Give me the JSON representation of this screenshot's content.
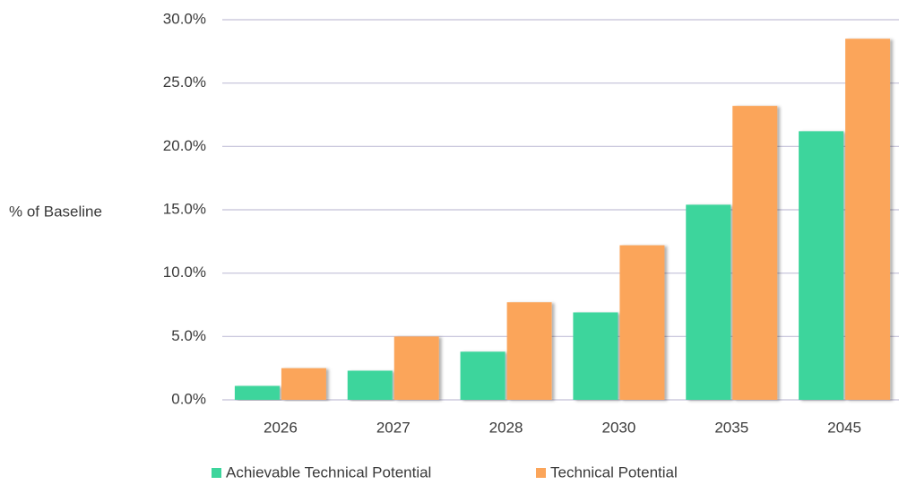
{
  "chart_data": {
    "type": "bar",
    "y_label": "% of Baseline",
    "categories": [
      "2026",
      "2027",
      "2028",
      "2030",
      "2035",
      "2045"
    ],
    "series": [
      {
        "name": "Achievable Technical Potential",
        "color": "#3dd59c",
        "values": [
          1.1,
          2.3,
          3.8,
          6.9,
          15.4,
          21.2
        ]
      },
      {
        "name": "Technical Potential",
        "color": "#fba55a",
        "values": [
          2.5,
          5.0,
          7.7,
          12.2,
          23.2,
          28.5
        ]
      }
    ],
    "ylim": [
      0,
      30
    ],
    "yticks": [
      {
        "value": 0,
        "label": "0.0%"
      },
      {
        "value": 5,
        "label": "5.0%"
      },
      {
        "value": 10,
        "label": "10.0%"
      },
      {
        "value": 15,
        "label": "15.0%"
      },
      {
        "value": 20,
        "label": "20.0%"
      },
      {
        "value": 25,
        "label": "25.0%"
      },
      {
        "value": 30,
        "label": "30.0%"
      }
    ],
    "grid": true,
    "legend": "bottom"
  }
}
